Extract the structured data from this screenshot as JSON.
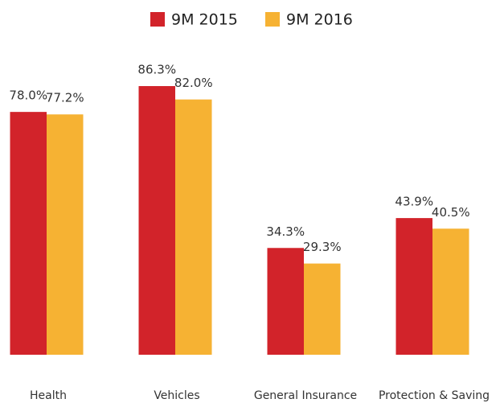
{
  "chart_data": {
    "type": "bar",
    "categories": [
      "Health",
      "Vehicles",
      "General Insurance",
      "Protection & Saving"
    ],
    "series": [
      {
        "name": "9M 2015",
        "color": "#d2232a",
        "values": [
          78.0,
          86.3,
          34.3,
          43.9
        ],
        "value_labels": [
          "78.0%",
          "86.3%",
          "34.3%",
          "43.9%"
        ]
      },
      {
        "name": "9M 2016",
        "color": "#f6b233",
        "values": [
          77.2,
          82.0,
          29.3,
          40.5
        ],
        "value_labels": [
          "77.2%",
          "82.0%",
          "29.3%",
          "40.5%"
        ]
      }
    ],
    "legend": "top"
  }
}
